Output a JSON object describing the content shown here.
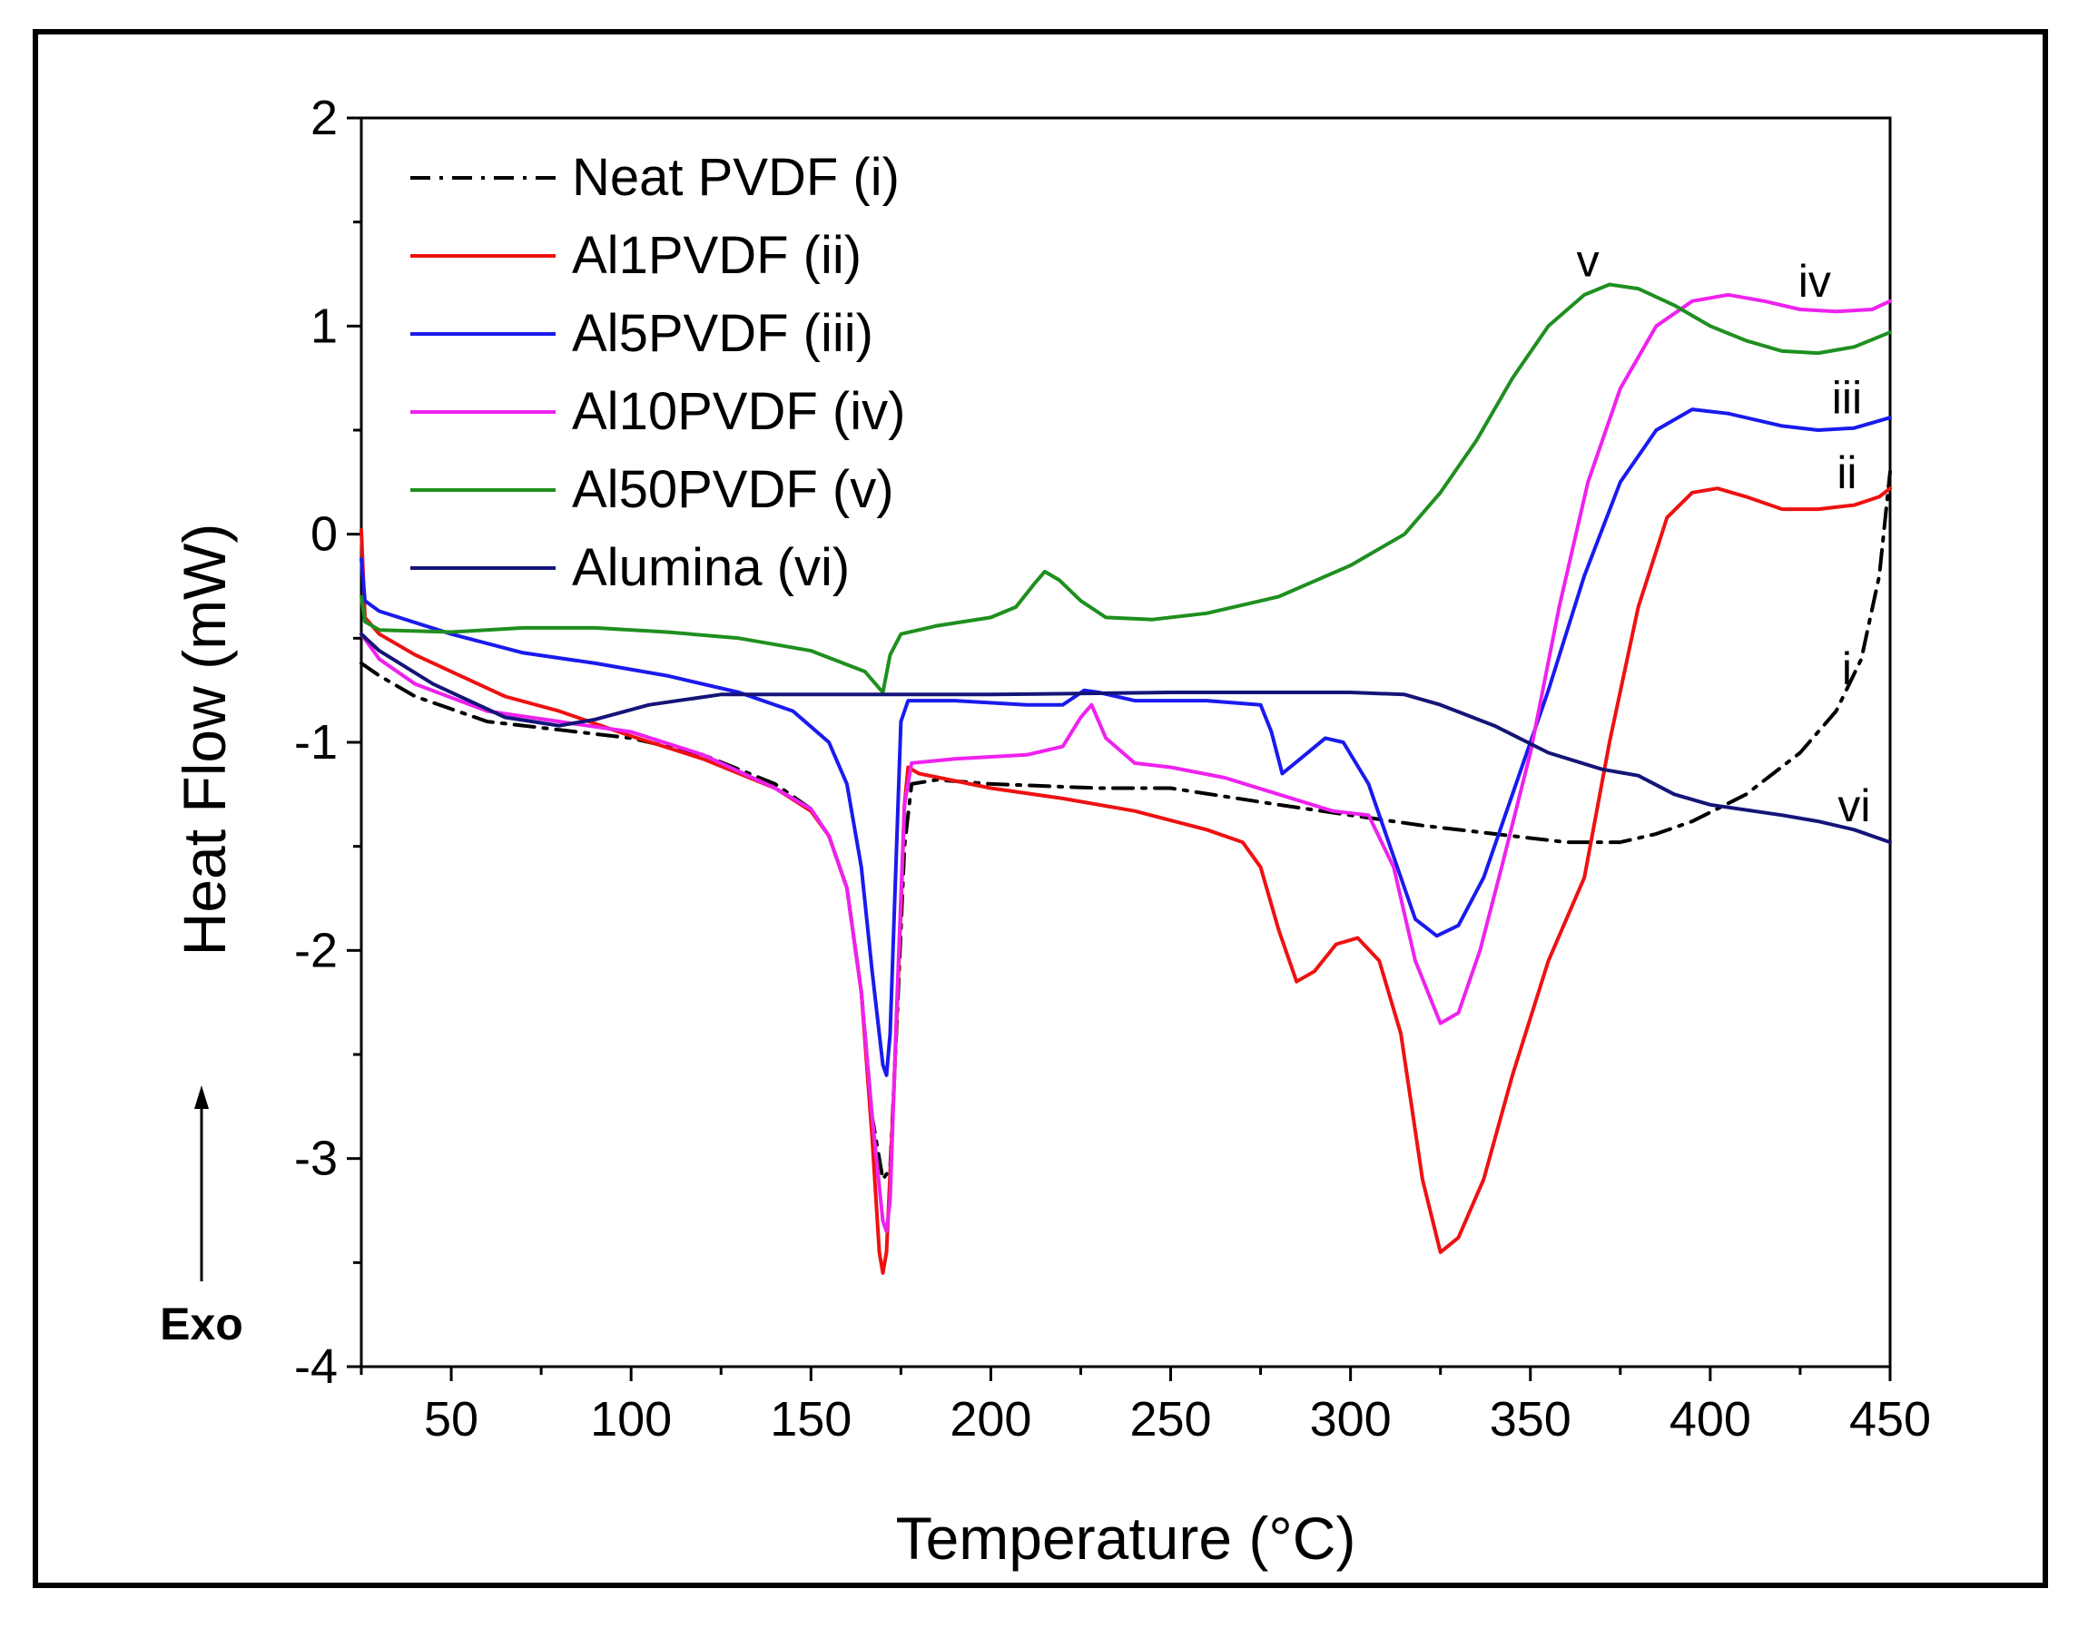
{
  "chart_data": {
    "type": "line",
    "title": "",
    "xlabel": "Temperature (°C)",
    "ylabel": "Heat Flow (mW)",
    "xlim": [
      25,
      450
    ],
    "ylim": [
      -4,
      2
    ],
    "x_ticks": [
      50,
      100,
      150,
      200,
      250,
      300,
      350,
      400,
      450
    ],
    "y_ticks": [
      -4,
      -3,
      -2,
      -1,
      0,
      1,
      2
    ],
    "x_tick_labels": [
      "50",
      "100",
      "150",
      "200",
      "250",
      "300",
      "350",
      "400",
      "450"
    ],
    "y_tick_labels": [
      "-4",
      "-3",
      "-2",
      "-1",
      "0",
      "1",
      "2"
    ],
    "grid": false,
    "legend_position": "top-left",
    "exo_label": "Exo",
    "series": [
      {
        "name": "Neat PVDF (i)",
        "end_label": "i",
        "color": "#000000",
        "dash": "dashdot",
        "points": [
          [
            25,
            -0.62
          ],
          [
            30,
            -0.68
          ],
          [
            40,
            -0.78
          ],
          [
            60,
            -0.9
          ],
          [
            80,
            -0.94
          ],
          [
            100,
            -0.98
          ],
          [
            120,
            -1.06
          ],
          [
            140,
            -1.2
          ],
          [
            150,
            -1.32
          ],
          [
            155,
            -1.45
          ],
          [
            160,
            -1.7
          ],
          [
            164,
            -2.2
          ],
          [
            167,
            -2.8
          ],
          [
            170,
            -3.1
          ],
          [
            172,
            -3.05
          ],
          [
            174,
            -2.3
          ],
          [
            176,
            -1.5
          ],
          [
            178,
            -1.2
          ],
          [
            185,
            -1.18
          ],
          [
            200,
            -1.2
          ],
          [
            230,
            -1.22
          ],
          [
            250,
            -1.22
          ],
          [
            280,
            -1.3
          ],
          [
            300,
            -1.35
          ],
          [
            320,
            -1.4
          ],
          [
            340,
            -1.44
          ],
          [
            360,
            -1.48
          ],
          [
            375,
            -1.48
          ],
          [
            385,
            -1.44
          ],
          [
            395,
            -1.38
          ],
          [
            410,
            -1.25
          ],
          [
            425,
            -1.05
          ],
          [
            435,
            -0.85
          ],
          [
            442,
            -0.6
          ],
          [
            447,
            -0.2
          ],
          [
            450,
            0.3
          ]
        ]
      },
      {
        "name": "Al1PVDF (ii)",
        "end_label": "ii",
        "color": "#ee1111",
        "dash": "solid",
        "points": [
          [
            25,
            0.02
          ],
          [
            26,
            -0.4
          ],
          [
            30,
            -0.48
          ],
          [
            40,
            -0.58
          ],
          [
            55,
            -0.7
          ],
          [
            65,
            -0.78
          ],
          [
            80,
            -0.85
          ],
          [
            100,
            -0.97
          ],
          [
            120,
            -1.08
          ],
          [
            140,
            -1.22
          ],
          [
            150,
            -1.33
          ],
          [
            155,
            -1.45
          ],
          [
            160,
            -1.7
          ],
          [
            164,
            -2.2
          ],
          [
            167,
            -2.9
          ],
          [
            169,
            -3.45
          ],
          [
            170,
            -3.55
          ],
          [
            171,
            -3.45
          ],
          [
            173,
            -2.7
          ],
          [
            175,
            -1.8
          ],
          [
            176,
            -1.3
          ],
          [
            177,
            -1.12
          ],
          [
            180,
            -1.15
          ],
          [
            200,
            -1.22
          ],
          [
            220,
            -1.27
          ],
          [
            240,
            -1.33
          ],
          [
            260,
            -1.42
          ],
          [
            270,
            -1.48
          ],
          [
            275,
            -1.6
          ],
          [
            280,
            -1.9
          ],
          [
            285,
            -2.15
          ],
          [
            290,
            -2.1
          ],
          [
            296,
            -1.97
          ],
          [
            302,
            -1.94
          ],
          [
            308,
            -2.05
          ],
          [
            314,
            -2.4
          ],
          [
            320,
            -3.1
          ],
          [
            325,
            -3.45
          ],
          [
            330,
            -3.38
          ],
          [
            337,
            -3.1
          ],
          [
            345,
            -2.6
          ],
          [
            355,
            -2.05
          ],
          [
            365,
            -1.65
          ],
          [
            372,
            -1.0
          ],
          [
            380,
            -0.35
          ],
          [
            388,
            0.08
          ],
          [
            395,
            0.2
          ],
          [
            402,
            0.22
          ],
          [
            410,
            0.18
          ],
          [
            420,
            0.12
          ],
          [
            430,
            0.12
          ],
          [
            440,
            0.14
          ],
          [
            447,
            0.18
          ],
          [
            450,
            0.22
          ]
        ]
      },
      {
        "name": "Al5PVDF (iii)",
        "end_label": "iii",
        "color": "#1a1aee",
        "dash": "solid",
        "points": [
          [
            25,
            -0.12
          ],
          [
            26,
            -0.32
          ],
          [
            30,
            -0.37
          ],
          [
            50,
            -0.48
          ],
          [
            70,
            -0.57
          ],
          [
            90,
            -0.62
          ],
          [
            110,
            -0.68
          ],
          [
            130,
            -0.76
          ],
          [
            145,
            -0.85
          ],
          [
            155,
            -1.0
          ],
          [
            160,
            -1.2
          ],
          [
            164,
            -1.6
          ],
          [
            167,
            -2.1
          ],
          [
            170,
            -2.55
          ],
          [
            171,
            -2.6
          ],
          [
            172,
            -2.4
          ],
          [
            174,
            -1.4
          ],
          [
            175,
            -0.9
          ],
          [
            177,
            -0.8
          ],
          [
            190,
            -0.8
          ],
          [
            210,
            -0.82
          ],
          [
            220,
            -0.82
          ],
          [
            226,
            -0.75
          ],
          [
            230,
            -0.76
          ],
          [
            240,
            -0.8
          ],
          [
            260,
            -0.8
          ],
          [
            275,
            -0.82
          ],
          [
            278,
            -0.95
          ],
          [
            281,
            -1.15
          ],
          [
            286,
            -1.08
          ],
          [
            293,
            -0.98
          ],
          [
            298,
            -1.0
          ],
          [
            305,
            -1.2
          ],
          [
            312,
            -1.55
          ],
          [
            318,
            -1.85
          ],
          [
            324,
            -1.93
          ],
          [
            330,
            -1.88
          ],
          [
            337,
            -1.65
          ],
          [
            345,
            -1.25
          ],
          [
            355,
            -0.75
          ],
          [
            365,
            -0.2
          ],
          [
            375,
            0.25
          ],
          [
            385,
            0.5
          ],
          [
            395,
            0.6
          ],
          [
            405,
            0.58
          ],
          [
            420,
            0.52
          ],
          [
            430,
            0.5
          ],
          [
            440,
            0.51
          ],
          [
            450,
            0.56
          ]
        ]
      },
      {
        "name": "Al10PVDF (iv)",
        "end_label": "iv",
        "color": "#ee22ee",
        "dash": "solid",
        "points": [
          [
            25,
            -0.48
          ],
          [
            30,
            -0.6
          ],
          [
            40,
            -0.72
          ],
          [
            60,
            -0.85
          ],
          [
            80,
            -0.9
          ],
          [
            100,
            -0.95
          ],
          [
            120,
            -1.06
          ],
          [
            140,
            -1.22
          ],
          [
            150,
            -1.32
          ],
          [
            155,
            -1.45
          ],
          [
            160,
            -1.7
          ],
          [
            164,
            -2.2
          ],
          [
            167,
            -2.8
          ],
          [
            170,
            -3.3
          ],
          [
            171,
            -3.35
          ],
          [
            172,
            -3.2
          ],
          [
            174,
            -2.2
          ],
          [
            176,
            -1.3
          ],
          [
            178,
            -1.1
          ],
          [
            190,
            -1.08
          ],
          [
            210,
            -1.06
          ],
          [
            220,
            -1.02
          ],
          [
            225,
            -0.88
          ],
          [
            228,
            -0.82
          ],
          [
            232,
            -0.98
          ],
          [
            240,
            -1.1
          ],
          [
            250,
            -1.12
          ],
          [
            265,
            -1.17
          ],
          [
            280,
            -1.25
          ],
          [
            295,
            -1.33
          ],
          [
            305,
            -1.35
          ],
          [
            312,
            -1.6
          ],
          [
            318,
            -2.05
          ],
          [
            325,
            -2.35
          ],
          [
            330,
            -2.3
          ],
          [
            336,
            -2.0
          ],
          [
            342,
            -1.6
          ],
          [
            350,
            -1.05
          ],
          [
            358,
            -0.35
          ],
          [
            366,
            0.25
          ],
          [
            375,
            0.7
          ],
          [
            385,
            1.0
          ],
          [
            395,
            1.12
          ],
          [
            405,
            1.15
          ],
          [
            415,
            1.12
          ],
          [
            425,
            1.08
          ],
          [
            435,
            1.07
          ],
          [
            445,
            1.08
          ],
          [
            450,
            1.12
          ]
        ]
      },
      {
        "name": "Al50PVDF (v)",
        "end_label": "v",
        "color": "#1f8f1f",
        "dash": "solid",
        "points": [
          [
            25,
            -0.3
          ],
          [
            26,
            -0.42
          ],
          [
            30,
            -0.46
          ],
          [
            50,
            -0.47
          ],
          [
            70,
            -0.45
          ],
          [
            90,
            -0.45
          ],
          [
            110,
            -0.47
          ],
          [
            130,
            -0.5
          ],
          [
            150,
            -0.56
          ],
          [
            165,
            -0.66
          ],
          [
            170,
            -0.76
          ],
          [
            172,
            -0.58
          ],
          [
            175,
            -0.48
          ],
          [
            185,
            -0.44
          ],
          [
            200,
            -0.4
          ],
          [
            207,
            -0.35
          ],
          [
            212,
            -0.24
          ],
          [
            215,
            -0.18
          ],
          [
            219,
            -0.22
          ],
          [
            225,
            -0.32
          ],
          [
            232,
            -0.4
          ],
          [
            245,
            -0.41
          ],
          [
            260,
            -0.38
          ],
          [
            280,
            -0.3
          ],
          [
            300,
            -0.15
          ],
          [
            315,
            0.0
          ],
          [
            325,
            0.2
          ],
          [
            335,
            0.45
          ],
          [
            345,
            0.75
          ],
          [
            355,
            1.0
          ],
          [
            365,
            1.15
          ],
          [
            372,
            1.2
          ],
          [
            380,
            1.18
          ],
          [
            390,
            1.1
          ],
          [
            400,
            1.0
          ],
          [
            410,
            0.93
          ],
          [
            420,
            0.88
          ],
          [
            430,
            0.87
          ],
          [
            440,
            0.9
          ],
          [
            450,
            0.97
          ]
        ]
      },
      {
        "name": "Alumina (vi)",
        "end_label": "vi",
        "color": "#141478",
        "dash": "solid",
        "points": [
          [
            25,
            -0.48
          ],
          [
            30,
            -0.56
          ],
          [
            45,
            -0.72
          ],
          [
            65,
            -0.88
          ],
          [
            80,
            -0.92
          ],
          [
            90,
            -0.89
          ],
          [
            105,
            -0.82
          ],
          [
            125,
            -0.77
          ],
          [
            150,
            -0.77
          ],
          [
            200,
            -0.77
          ],
          [
            250,
            -0.76
          ],
          [
            300,
            -0.76
          ],
          [
            315,
            -0.77
          ],
          [
            325,
            -0.82
          ],
          [
            340,
            -0.92
          ],
          [
            355,
            -1.05
          ],
          [
            370,
            -1.13
          ],
          [
            380,
            -1.16
          ],
          [
            390,
            -1.25
          ],
          [
            400,
            -1.3
          ],
          [
            420,
            -1.35
          ],
          [
            430,
            -1.38
          ],
          [
            440,
            -1.42
          ],
          [
            450,
            -1.48
          ]
        ]
      }
    ]
  }
}
